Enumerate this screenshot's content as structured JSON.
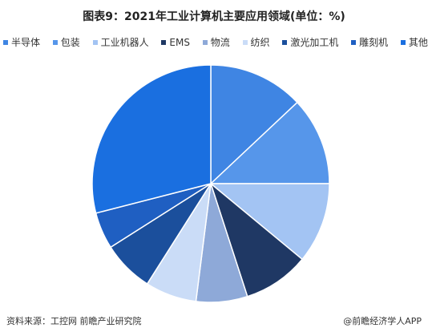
{
  "chart_data": {
    "type": "pie",
    "title": "图表9：2021年工业计算机主要应用领域(单位：%)",
    "categories": [
      "半导体",
      "包装",
      "工业机器人",
      "EMS",
      "物流",
      "纺织",
      "激光加工机",
      "雕刻机",
      "其他"
    ],
    "values": [
      13,
      12,
      11,
      9,
      7,
      7,
      7,
      5,
      29
    ],
    "colors": [
      "#3f85e3",
      "#5696ea",
      "#a3c4f3",
      "#1f3864",
      "#8ea9d8",
      "#cadcf7",
      "#1b4f9c",
      "#1f5fc2",
      "#1a6fe0"
    ]
  },
  "footer": {
    "source": "资料来源：工控网 前瞻产业研究院",
    "brand": "@前瞻经济学人APP"
  }
}
